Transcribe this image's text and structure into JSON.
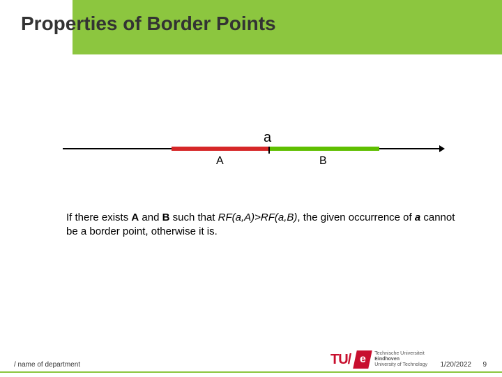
{
  "title": "Properties of  Border Points",
  "diagram": {
    "label_a": "a",
    "label_A": "A",
    "label_B": "B",
    "colors": {
      "segA": "#d62728",
      "segB": "#5fbf00",
      "line": "#000000"
    }
  },
  "body": {
    "pre": "If there exists ",
    "b1": "A",
    "mid1": " and ",
    "b2": "B",
    "mid2": " such that  ",
    "i1": "RF(a,A)>RF(a,B)",
    "mid3": ", the given occurrence of ",
    "bi1": "a",
    "post": " cannot be a border point, otherwise it is."
  },
  "footer": {
    "left": "/ name of department",
    "date": "1/20/2022",
    "page": "9",
    "logo_tu": "TU/",
    "logo_e": "e",
    "logo_sub1": "Technische Universiteit",
    "logo_sub2": "Eindhoven",
    "logo_sub3": "University of Technology"
  },
  "colors": {
    "accent": "#8cc63f",
    "brand": "#c80f2e"
  }
}
